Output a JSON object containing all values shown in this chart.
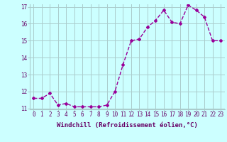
{
  "x": [
    0,
    1,
    2,
    3,
    4,
    5,
    6,
    7,
    8,
    9,
    10,
    11,
    12,
    13,
    14,
    15,
    16,
    17,
    18,
    19,
    20,
    21,
    22,
    23
  ],
  "y": [
    11.6,
    11.6,
    11.9,
    11.2,
    11.3,
    11.1,
    11.1,
    11.1,
    11.1,
    11.2,
    12.0,
    13.6,
    15.0,
    15.1,
    15.8,
    16.2,
    16.8,
    16.1,
    16.0,
    17.1,
    16.8,
    16.4,
    15.0,
    15.0
  ],
  "line_color": "#990099",
  "marker": "D",
  "marker_size": 2.0,
  "bg_color": "#ccffff",
  "grid_color": "#aacccc",
  "xlabel": "Windchill (Refroidissement éolien,°C)",
  "xlabel_color": "#660066",
  "tick_color": "#660066",
  "ylim": [
    11,
    17
  ],
  "yticks": [
    11,
    12,
    13,
    14,
    15,
    16,
    17
  ],
  "xticks": [
    0,
    1,
    2,
    3,
    4,
    5,
    6,
    7,
    8,
    9,
    10,
    11,
    12,
    13,
    14,
    15,
    16,
    17,
    18,
    19,
    20,
    21,
    22,
    23
  ],
  "xlabel_fontsize": 6.5,
  "tick_fontsize": 5.5,
  "linewidth": 1.0
}
